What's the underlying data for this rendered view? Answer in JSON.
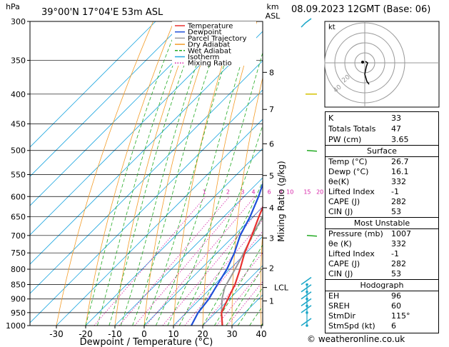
{
  "header": {
    "location": "39°00'N  17°04'E  53m  ASL",
    "date": "08.09.2023  12GMT  (Base: 06)",
    "p_unit": "hPa",
    "alt_unit_km": "km",
    "alt_unit_asl": "ASL"
  },
  "chart_data": {
    "type": "skew-t log-p",
    "xlabel": "Dewpoint / Temperature (°C)",
    "ylabel": "Mixing Ratio (g/kg)",
    "x_ticks": [
      -30,
      -20,
      -10,
      0,
      10,
      20,
      30,
      40
    ],
    "pressure_levels": [
      300,
      350,
      400,
      450,
      500,
      550,
      600,
      650,
      700,
      750,
      800,
      850,
      900,
      950,
      1000
    ],
    "altitude_km_ticks": [
      {
        "km": "1",
        "p": 907
      },
      {
        "km": "2",
        "p": 797
      },
      {
        "km": "3",
        "p": 707
      },
      {
        "km": "4",
        "p": 627
      },
      {
        "km": "5",
        "p": 552
      },
      {
        "km": "6",
        "p": 487
      },
      {
        "km": "7",
        "p": 425
      },
      {
        "km": "8",
        "p": 367
      }
    ],
    "lcl": {
      "label": "LCL",
      "p": 860
    },
    "mixing_ratio_labels": [
      "1",
      "2",
      "3",
      "4",
      "6",
      "8",
      "10",
      "15",
      "20",
      "25"
    ],
    "temperature": [
      {
        "p": 1000,
        "t": 26.7
      },
      {
        "p": 950,
        "t": 22.0
      },
      {
        "p": 900,
        "t": 19.5
      },
      {
        "p": 850,
        "t": 17.0
      },
      {
        "p": 800,
        "t": 13.5
      },
      {
        "p": 750,
        "t": 9.5
      },
      {
        "p": 700,
        "t": 6.0
      },
      {
        "p": 650,
        "t": 2.0
      },
      {
        "p": 600,
        "t": -2.0
      },
      {
        "p": 550,
        "t": -6.5
      },
      {
        "p": 500,
        "t": -11.0
      },
      {
        "p": 450,
        "t": -16.5
      },
      {
        "p": 400,
        "t": -23.0
      },
      {
        "p": 350,
        "t": -31.0
      },
      {
        "p": 300,
        "t": -40.0
      }
    ],
    "dewpoint": [
      {
        "p": 1000,
        "t": 16.1
      },
      {
        "p": 950,
        "t": 14.0
      },
      {
        "p": 900,
        "t": 13.0
      },
      {
        "p": 850,
        "t": 11.0
      },
      {
        "p": 800,
        "t": 9.0
      },
      {
        "p": 750,
        "t": 6.0
      },
      {
        "p": 700,
        "t": 2.0
      },
      {
        "p": 650,
        "t": -1.0
      },
      {
        "p": 600,
        "t": -5.0
      },
      {
        "p": 550,
        "t": -10.0
      },
      {
        "p": 500,
        "t": -14.0
      },
      {
        "p": 450,
        "t": -24.0
      },
      {
        "p": 400,
        "t": -34.0
      },
      {
        "p": 350,
        "t": -48.0
      },
      {
        "p": 300,
        "t": -58.0
      }
    ],
    "parcel": [
      {
        "p": 1000,
        "t": 26.7
      },
      {
        "p": 950,
        "t": 22.0
      },
      {
        "p": 900,
        "t": 17.5
      },
      {
        "p": 860,
        "t": 14.5
      },
      {
        "p": 800,
        "t": 11.8
      },
      {
        "p": 750,
        "t": 9.2
      },
      {
        "p": 700,
        "t": 6.2
      },
      {
        "p": 650,
        "t": 3.2
      },
      {
        "p": 600,
        "t": -0.2
      },
      {
        "p": 550,
        "t": -3.8
      },
      {
        "p": 500,
        "t": -8.3
      },
      {
        "p": 450,
        "t": -13.6
      },
      {
        "p": 400,
        "t": -20.0
      },
      {
        "p": 350,
        "t": -28.0
      },
      {
        "p": 300,
        "t": -37.5
      }
    ],
    "legend": [
      {
        "label": "Temperature",
        "color": "#e8312f"
      },
      {
        "label": "Dewpoint",
        "color": "#1f4fd8"
      },
      {
        "label": "Parcel Trajectory",
        "color": "#999999"
      },
      {
        "label": "Dry Adiabat",
        "color": "#f39c28"
      },
      {
        "label": "Wet Adiabat",
        "color": "#22aa22"
      },
      {
        "label": "Isotherm",
        "color": "#22a8e0"
      },
      {
        "label": "Mixing Ratio",
        "color": "#d61fa6"
      }
    ],
    "wind_levels_p": [
      300,
      400,
      500,
      700,
      850,
      875,
      900,
      925,
      950,
      1000
    ]
  },
  "hodograph": {
    "unit": "kt",
    "ring_labels": [
      "20",
      "40"
    ]
  },
  "indices": {
    "rows": [
      {
        "label": "K",
        "value": "33"
      },
      {
        "label": "Totals Totals",
        "value": "47"
      },
      {
        "label": "PW (cm)",
        "value": "3.65"
      }
    ]
  },
  "surface": {
    "title": "Surface",
    "rows": [
      {
        "label": "Temp (°C)",
        "value": "26.7"
      },
      {
        "label": "Dewp (°C)",
        "value": "16.1"
      },
      {
        "label": "θe(K)",
        "value": "332"
      },
      {
        "label": "Lifted Index",
        "value": "-1"
      },
      {
        "label": "CAPE (J)",
        "value": "282"
      },
      {
        "label": "CIN (J)",
        "value": "53"
      }
    ]
  },
  "most_unstable": {
    "title": "Most Unstable",
    "rows": [
      {
        "label": "Pressure (mb)",
        "value": "1007"
      },
      {
        "label": "θe (K)",
        "value": "332"
      },
      {
        "label": "Lifted Index",
        "value": "-1"
      },
      {
        "label": "CAPE (J)",
        "value": "282"
      },
      {
        "label": "CIN (J)",
        "value": "53"
      }
    ]
  },
  "hodograph_table": {
    "title": "Hodograph",
    "rows": [
      {
        "label": "EH",
        "value": "96"
      },
      {
        "label": "SREH",
        "value": "60"
      },
      {
        "label": "StmDir",
        "value": "115°"
      },
      {
        "label": "StmSpd (kt)",
        "value": "6"
      }
    ]
  },
  "copyright": "© weatheronline.co.uk"
}
